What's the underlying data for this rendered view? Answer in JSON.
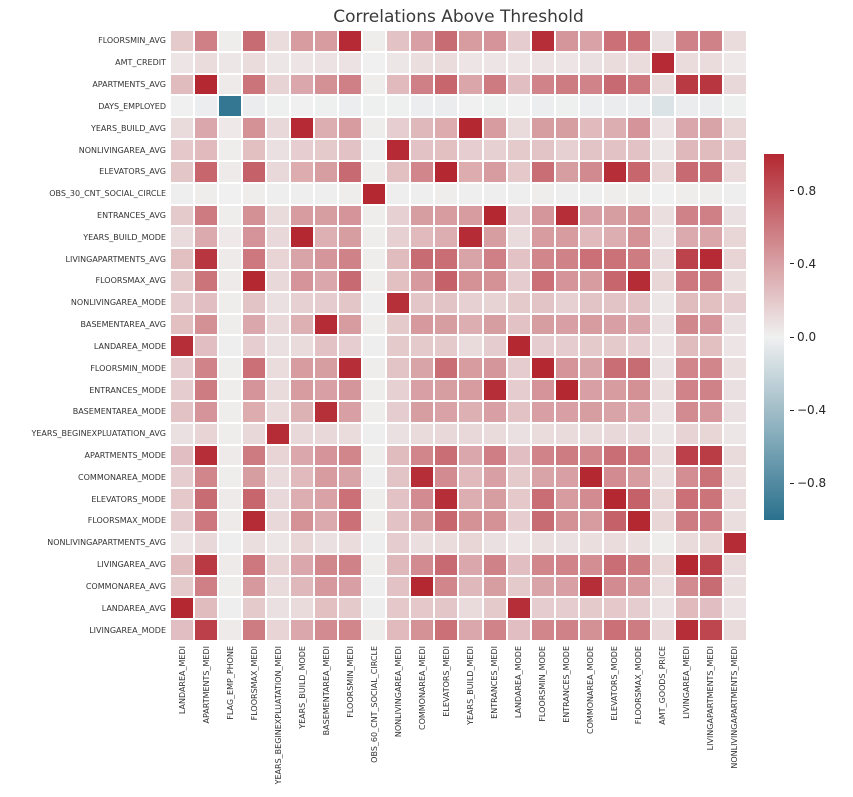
{
  "chart_data": {
    "type": "heatmap",
    "title": "Correlations Above Threshold",
    "legend_position": "right",
    "grid": false,
    "rows": [
      "FLOORSMIN_AVG",
      "AMT_CREDIT",
      "APARTMENTS_AVG",
      "DAYS_EMPLOYED",
      "YEARS_BUILD_AVG",
      "NONLIVINGAREA_AVG",
      "ELEVATORS_AVG",
      "OBS_30_CNT_SOCIAL_CIRCLE",
      "ENTRANCES_AVG",
      "YEARS_BUILD_MODE",
      "LIVINGAPARTMENTS_AVG",
      "FLOORSMAX_AVG",
      "NONLIVINGAREA_MODE",
      "BASEMENTAREA_AVG",
      "LANDAREA_MODE",
      "FLOORSMIN_MODE",
      "ENTRANCES_MODE",
      "BASEMENTAREA_MODE",
      "YEARS_BEGINEXPLUATATION_AVG",
      "APARTMENTS_MODE",
      "COMMONAREA_MODE",
      "ELEVATORS_MODE",
      "FLOORSMAX_MODE",
      "NONLIVINGAPARTMENTS_AVG",
      "LIVINGAREA_AVG",
      "COMMONAREA_AVG",
      "LANDAREA_AVG",
      "LIVINGAREA_MODE"
    ],
    "columns": [
      "LANDAREA_MEDI",
      "APARTMENTS_MEDI",
      "FLAG_EMP_PHONE",
      "FLOORSMAX_MEDI",
      "YEARS_BEGINEXPLUATATION_MEDI",
      "YEARS_BUILD_MODE",
      "BASEMENTAREA_MEDI",
      "FLOORSMIN_MEDI",
      "OBS_60_CNT_SOCIAL_CIRCLE",
      "NONLIVINGAREA_MEDI",
      "COMMONAREA_MEDI",
      "ELEVATORS_MEDI",
      "YEARS_BUILD_MEDI",
      "ENTRANCES_MEDI",
      "LANDAREA_MODE",
      "FLOORSMIN_MODE",
      "ENTRANCES_MODE",
      "COMMONAREA_MODE",
      "ELEVATORS_MODE",
      "FLOORSMAX_MODE",
      "AMT_GOODS_PRICE",
      "LIVINGAREA_MEDI",
      "LIVINGAPARTMENTS_MEDI",
      "NONLIVINGAPARTMENTS_MEDI"
    ],
    "values": [
      [
        0.19,
        0.56,
        0.02,
        0.66,
        0.1,
        0.42,
        0.42,
        0.99,
        0.02,
        0.23,
        0.4,
        0.66,
        0.42,
        0.46,
        0.18,
        0.97,
        0.45,
        0.39,
        0.64,
        0.64,
        0.08,
        0.55,
        0.55,
        0.1
      ],
      [
        0.06,
        0.1,
        0.05,
        0.1,
        0.05,
        0.06,
        0.07,
        0.07,
        0.0,
        0.05,
        0.09,
        0.1,
        0.06,
        0.06,
        0.06,
        0.07,
        0.06,
        0.08,
        0.1,
        0.1,
        0.99,
        0.1,
        0.1,
        0.04
      ],
      [
        0.26,
        1.0,
        0.03,
        0.62,
        0.15,
        0.36,
        0.48,
        0.56,
        0.02,
        0.27,
        0.56,
        0.69,
        0.37,
        0.59,
        0.25,
        0.54,
        0.58,
        0.54,
        0.67,
        0.6,
        0.11,
        0.91,
        0.93,
        0.12
      ],
      [
        0.0,
        -0.02,
        -0.95,
        -0.03,
        -0.01,
        0.0,
        -0.01,
        -0.02,
        -0.01,
        -0.01,
        -0.02,
        -0.03,
        0.0,
        -0.01,
        0.0,
        -0.02,
        -0.01,
        -0.02,
        -0.03,
        -0.03,
        -0.1,
        -0.03,
        -0.03,
        -0.01
      ],
      [
        0.11,
        0.36,
        0.04,
        0.47,
        0.12,
        0.99,
        0.33,
        0.42,
        0.02,
        0.17,
        0.28,
        0.34,
        1.0,
        0.42,
        0.11,
        0.41,
        0.41,
        0.27,
        0.33,
        0.46,
        0.07,
        0.36,
        0.38,
        0.13
      ],
      [
        0.2,
        0.27,
        0.02,
        0.24,
        0.08,
        0.17,
        0.19,
        0.23,
        0.01,
        0.99,
        0.23,
        0.24,
        0.17,
        0.16,
        0.19,
        0.22,
        0.16,
        0.22,
        0.23,
        0.23,
        0.05,
        0.28,
        0.26,
        0.18
      ],
      [
        0.21,
        0.69,
        0.03,
        0.71,
        0.12,
        0.34,
        0.41,
        0.67,
        0.02,
        0.24,
        0.53,
        1.0,
        0.34,
        0.42,
        0.2,
        0.65,
        0.41,
        0.51,
        0.97,
        0.69,
        0.13,
        0.67,
        0.65,
        0.1
      ],
      [
        0.01,
        0.02,
        0.0,
        0.02,
        0.01,
        0.01,
        0.01,
        0.02,
        1.0,
        0.01,
        0.01,
        0.02,
        0.01,
        0.01,
        0.01,
        0.02,
        0.01,
        0.01,
        0.02,
        0.02,
        0.0,
        0.02,
        0.02,
        0.01
      ],
      [
        0.19,
        0.59,
        0.02,
        0.48,
        0.11,
        0.42,
        0.41,
        0.46,
        0.02,
        0.16,
        0.41,
        0.42,
        0.42,
        1.0,
        0.18,
        0.45,
        0.97,
        0.4,
        0.41,
        0.47,
        0.09,
        0.55,
        0.56,
        0.08
      ],
      [
        0.11,
        0.35,
        0.04,
        0.46,
        0.12,
        1.0,
        0.32,
        0.41,
        0.02,
        0.16,
        0.27,
        0.33,
        0.98,
        0.41,
        0.11,
        0.42,
        0.42,
        0.27,
        0.33,
        0.47,
        0.07,
        0.35,
        0.37,
        0.13
      ],
      [
        0.24,
        0.93,
        0.03,
        0.6,
        0.14,
        0.38,
        0.45,
        0.55,
        0.02,
        0.26,
        0.66,
        0.65,
        0.38,
        0.56,
        0.23,
        0.53,
        0.55,
        0.64,
        0.63,
        0.58,
        0.11,
        0.87,
        0.99,
        0.14
      ],
      [
        0.19,
        0.62,
        0.03,
        1.0,
        0.12,
        0.46,
        0.36,
        0.67,
        0.02,
        0.24,
        0.43,
        0.71,
        0.47,
        0.47,
        0.18,
        0.64,
        0.46,
        0.42,
        0.69,
        0.98,
        0.13,
        0.6,
        0.59,
        0.09
      ],
      [
        0.18,
        0.25,
        0.02,
        0.22,
        0.08,
        0.16,
        0.18,
        0.21,
        0.01,
        0.96,
        0.21,
        0.22,
        0.16,
        0.15,
        0.19,
        0.22,
        0.16,
        0.22,
        0.22,
        0.23,
        0.05,
        0.26,
        0.24,
        0.17
      ],
      [
        0.24,
        0.48,
        0.02,
        0.36,
        0.12,
        0.32,
        0.98,
        0.42,
        0.02,
        0.19,
        0.43,
        0.41,
        0.33,
        0.41,
        0.23,
        0.41,
        0.4,
        0.42,
        0.4,
        0.36,
        0.08,
        0.52,
        0.46,
        0.08
      ],
      [
        0.97,
        0.25,
        0.01,
        0.17,
        0.08,
        0.11,
        0.23,
        0.17,
        0.01,
        0.19,
        0.19,
        0.19,
        0.11,
        0.18,
        1.0,
        0.18,
        0.18,
        0.19,
        0.19,
        0.17,
        0.06,
        0.26,
        0.24,
        0.06
      ],
      [
        0.18,
        0.54,
        0.02,
        0.64,
        0.1,
        0.42,
        0.41,
        0.97,
        0.02,
        0.22,
        0.38,
        0.65,
        0.42,
        0.45,
        0.18,
        1.0,
        0.46,
        0.38,
        0.65,
        0.66,
        0.08,
        0.53,
        0.53,
        0.09
      ],
      [
        0.18,
        0.58,
        0.02,
        0.46,
        0.11,
        0.42,
        0.4,
        0.45,
        0.02,
        0.16,
        0.4,
        0.41,
        0.42,
        0.97,
        0.18,
        0.46,
        1.0,
        0.4,
        0.42,
        0.48,
        0.09,
        0.54,
        0.55,
        0.08
      ],
      [
        0.23,
        0.46,
        0.02,
        0.34,
        0.11,
        0.31,
        0.96,
        0.4,
        0.02,
        0.18,
        0.41,
        0.39,
        0.32,
        0.4,
        0.23,
        0.4,
        0.4,
        0.41,
        0.38,
        0.35,
        0.07,
        0.5,
        0.44,
        0.08
      ],
      [
        0.08,
        0.14,
        0.02,
        0.12,
        0.98,
        0.12,
        0.12,
        0.1,
        0.01,
        0.08,
        0.11,
        0.12,
        0.12,
        0.11,
        0.08,
        0.1,
        0.11,
        0.11,
        0.12,
        0.12,
        0.05,
        0.15,
        0.13,
        0.05
      ],
      [
        0.25,
        0.97,
        0.03,
        0.59,
        0.14,
        0.36,
        0.46,
        0.53,
        0.02,
        0.26,
        0.53,
        0.65,
        0.36,
        0.57,
        0.25,
        0.54,
        0.58,
        0.53,
        0.65,
        0.6,
        0.11,
        0.88,
        0.9,
        0.11
      ],
      [
        0.18,
        0.53,
        0.02,
        0.41,
        0.11,
        0.27,
        0.42,
        0.38,
        0.01,
        0.22,
        0.97,
        0.5,
        0.27,
        0.4,
        0.19,
        0.38,
        0.4,
        1.0,
        0.5,
        0.42,
        0.09,
        0.49,
        0.63,
        0.09
      ],
      [
        0.2,
        0.66,
        0.03,
        0.69,
        0.12,
        0.33,
        0.39,
        0.64,
        0.02,
        0.23,
        0.5,
        0.97,
        0.33,
        0.41,
        0.2,
        0.65,
        0.42,
        0.5,
        1.0,
        0.71,
        0.13,
        0.64,
        0.62,
        0.1
      ],
      [
        0.18,
        0.6,
        0.03,
        0.98,
        0.12,
        0.47,
        0.35,
        0.64,
        0.02,
        0.23,
        0.41,
        0.69,
        0.47,
        0.47,
        0.17,
        0.66,
        0.48,
        0.42,
        0.71,
        1.0,
        0.13,
        0.58,
        0.57,
        0.09
      ],
      [
        0.06,
        0.12,
        0.01,
        0.09,
        0.05,
        0.13,
        0.08,
        0.1,
        0.01,
        0.18,
        0.09,
        0.1,
        0.13,
        0.08,
        0.06,
        0.09,
        0.08,
        0.09,
        0.1,
        0.09,
        0.02,
        0.11,
        0.13,
        0.98
      ],
      [
        0.26,
        0.91,
        0.03,
        0.6,
        0.15,
        0.36,
        0.52,
        0.55,
        0.02,
        0.28,
        0.5,
        0.67,
        0.36,
        0.55,
        0.25,
        0.53,
        0.54,
        0.49,
        0.65,
        0.58,
        0.13,
        1.0,
        0.87,
        0.11
      ],
      [
        0.19,
        0.56,
        0.02,
        0.43,
        0.11,
        0.28,
        0.43,
        0.4,
        0.01,
        0.23,
        1.0,
        0.53,
        0.28,
        0.41,
        0.19,
        0.38,
        0.4,
        0.97,
        0.5,
        0.43,
        0.1,
        0.5,
        0.66,
        0.09
      ],
      [
        1.0,
        0.26,
        0.01,
        0.19,
        0.08,
        0.11,
        0.24,
        0.19,
        0.01,
        0.2,
        0.2,
        0.21,
        0.11,
        0.19,
        0.97,
        0.18,
        0.18,
        0.19,
        0.2,
        0.18,
        0.07,
        0.27,
        0.25,
        0.07
      ],
      [
        0.25,
        0.88,
        0.03,
        0.58,
        0.14,
        0.36,
        0.5,
        0.53,
        0.02,
        0.27,
        0.47,
        0.64,
        0.36,
        0.54,
        0.25,
        0.53,
        0.55,
        0.48,
        0.64,
        0.58,
        0.12,
        0.97,
        0.85,
        0.11
      ]
    ],
    "colorbar": {
      "min": -1,
      "max": 1,
      "ticks": [
        {
          "label": "0.8",
          "value": 0.8
        },
        {
          "label": "0.4",
          "value": 0.4
        },
        {
          "label": "0.0",
          "value": 0.0
        },
        {
          "label": "−0.4",
          "value": -0.4
        },
        {
          "label": "−0.8",
          "value": -0.8
        }
      ]
    },
    "colors": {
      "positive_max": "#b42832",
      "center": "#f0f0f0",
      "negative_min": "#2a718d"
    }
  }
}
